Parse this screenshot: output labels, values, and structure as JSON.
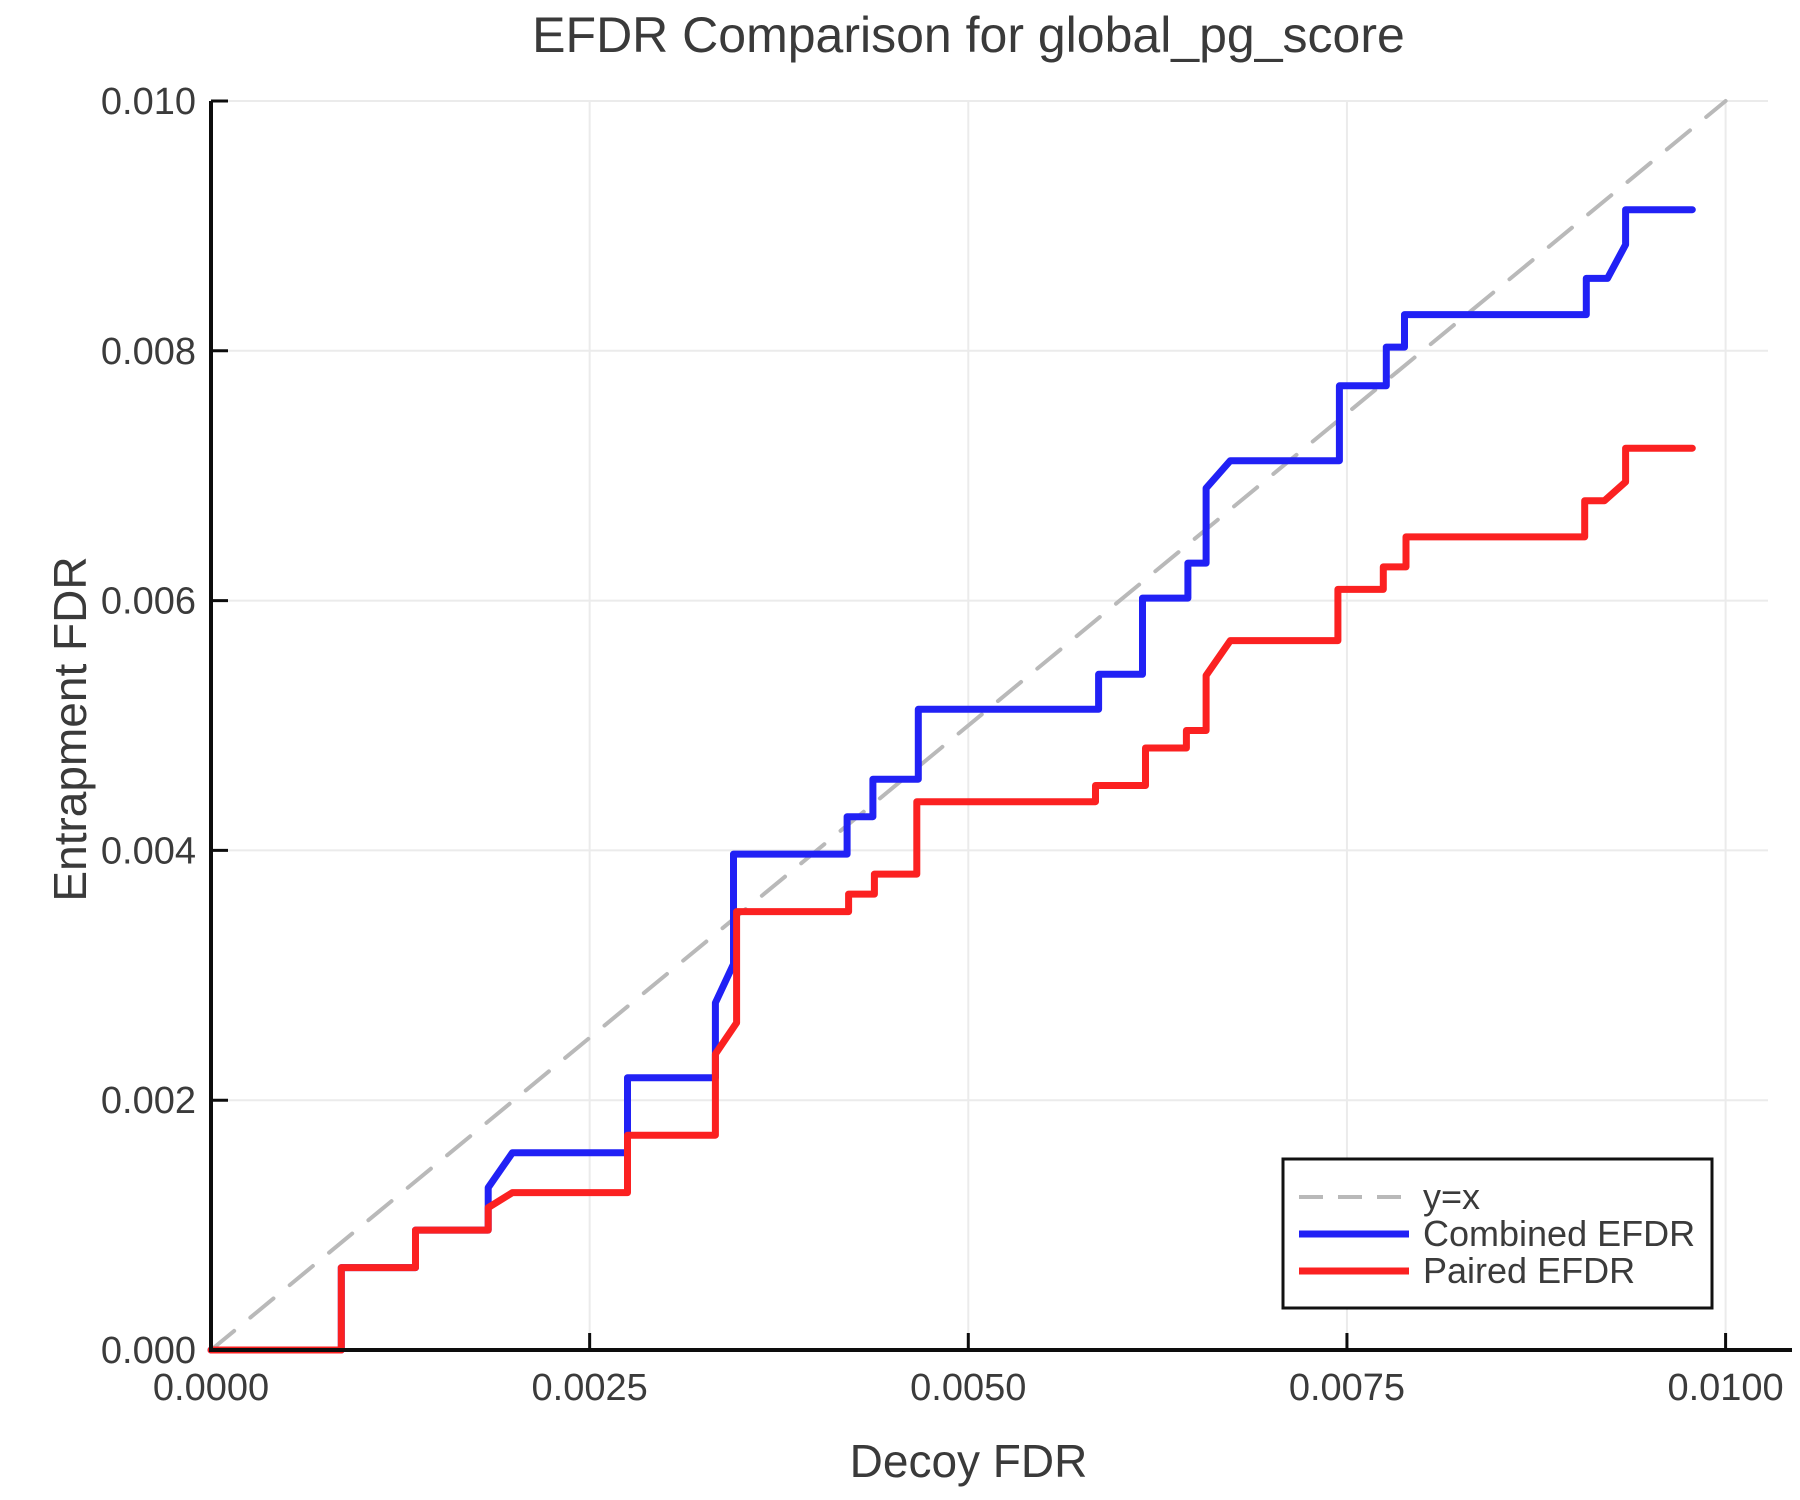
{
  "chart_data": {
    "type": "line",
    "title": "EFDR Comparison for global_pg_score",
    "xlabel": "Decoy FDR",
    "ylabel": "Entrapment FDR",
    "xlim": [
      0.0,
      0.0104
    ],
    "ylim": [
      0.0,
      0.01
    ],
    "grid": true,
    "legend_position": "bottom-right",
    "xticks": {
      "values": [
        0.0,
        0.0025,
        0.005,
        0.0075,
        0.01
      ],
      "labels": [
        "0.0000",
        "0.0025",
        "0.0050",
        "0.0075",
        "0.0100"
      ]
    },
    "yticks": {
      "values": [
        0.0,
        0.002,
        0.004,
        0.006,
        0.008,
        0.01
      ],
      "labels": [
        "0.000",
        "0.002",
        "0.004",
        "0.006",
        "0.008",
        "0.010"
      ]
    },
    "colors": {
      "identity": "#b9b9b9",
      "combined": "#2121f5",
      "paired": "#fb2121",
      "grid": "#ebebeb",
      "spine": "#0d0d0d",
      "text": "#3b3b3b",
      "legend_border": "#111111",
      "legend_bg": "#ffffff"
    },
    "series": [
      {
        "name": "y=x",
        "style": "dashed",
        "color_key": "identity",
        "width": 4,
        "points": [
          [
            0.0,
            0.0
          ],
          [
            0.01,
            0.01
          ]
        ]
      },
      {
        "name": "Combined EFDR",
        "style": "solid",
        "color_key": "combined",
        "width": 7,
        "points": [
          [
            0.0,
            0.0
          ],
          [
            0.00086,
            0.0
          ],
          [
            0.00086,
            0.00066
          ],
          [
            0.00135,
            0.00066
          ],
          [
            0.00135,
            0.00096
          ],
          [
            0.00183,
            0.00096
          ],
          [
            0.00183,
            0.0013
          ],
          [
            0.00199,
            0.00158
          ],
          [
            0.00275,
            0.00158
          ],
          [
            0.00275,
            0.00218
          ],
          [
            0.00333,
            0.00218
          ],
          [
            0.00333,
            0.00278
          ],
          [
            0.00345,
            0.00309
          ],
          [
            0.00345,
            0.00397
          ],
          [
            0.0042,
            0.00397
          ],
          [
            0.0042,
            0.00427
          ],
          [
            0.00437,
            0.00427
          ],
          [
            0.00437,
            0.00457
          ],
          [
            0.00467,
            0.00457
          ],
          [
            0.00467,
            0.00513
          ],
          [
            0.00586,
            0.00513
          ],
          [
            0.00586,
            0.00541
          ],
          [
            0.00615,
            0.00541
          ],
          [
            0.00615,
            0.00602
          ],
          [
            0.00645,
            0.00602
          ],
          [
            0.00645,
            0.0063
          ],
          [
            0.00657,
            0.0063
          ],
          [
            0.00657,
            0.0069
          ],
          [
            0.00673,
            0.00712
          ],
          [
            0.00745,
            0.00712
          ],
          [
            0.00745,
            0.00772
          ],
          [
            0.00776,
            0.00772
          ],
          [
            0.00776,
            0.00803
          ],
          [
            0.00788,
            0.00803
          ],
          [
            0.00788,
            0.00829
          ],
          [
            0.00908,
            0.00829
          ],
          [
            0.00908,
            0.00858
          ],
          [
            0.00922,
            0.00858
          ],
          [
            0.00934,
            0.00885
          ],
          [
            0.00934,
            0.00913
          ],
          [
            0.00978,
            0.00913
          ]
        ]
      },
      {
        "name": "Paired EFDR",
        "style": "solid",
        "color_key": "paired",
        "width": 7,
        "points": [
          [
            0.0,
            0.0
          ],
          [
            0.00086,
            0.0
          ],
          [
            0.00086,
            0.00066
          ],
          [
            0.00135,
            0.00066
          ],
          [
            0.00135,
            0.00096
          ],
          [
            0.00183,
            0.00096
          ],
          [
            0.00183,
            0.00114
          ],
          [
            0.00199,
            0.00126
          ],
          [
            0.00275,
            0.00126
          ],
          [
            0.00275,
            0.00172
          ],
          [
            0.00333,
            0.00172
          ],
          [
            0.00333,
            0.00237
          ],
          [
            0.00347,
            0.00262
          ],
          [
            0.00347,
            0.00351
          ],
          [
            0.00421,
            0.00351
          ],
          [
            0.00421,
            0.00365
          ],
          [
            0.00438,
            0.00365
          ],
          [
            0.00438,
            0.00381
          ],
          [
            0.00466,
            0.00381
          ],
          [
            0.00466,
            0.00439
          ],
          [
            0.00584,
            0.00439
          ],
          [
            0.00584,
            0.00452
          ],
          [
            0.00617,
            0.00452
          ],
          [
            0.00617,
            0.00482
          ],
          [
            0.00644,
            0.00482
          ],
          [
            0.00644,
            0.00496
          ],
          [
            0.00657,
            0.00496
          ],
          [
            0.00657,
            0.0054
          ],
          [
            0.00673,
            0.00568
          ],
          [
            0.00744,
            0.00568
          ],
          [
            0.00744,
            0.00609
          ],
          [
            0.00774,
            0.00609
          ],
          [
            0.00774,
            0.00627
          ],
          [
            0.00789,
            0.00627
          ],
          [
            0.00789,
            0.00651
          ],
          [
            0.00907,
            0.00651
          ],
          [
            0.00907,
            0.0068
          ],
          [
            0.0092,
            0.0068
          ],
          [
            0.00934,
            0.00695
          ],
          [
            0.00934,
            0.00722
          ],
          [
            0.00978,
            0.00722
          ]
        ]
      }
    ]
  }
}
